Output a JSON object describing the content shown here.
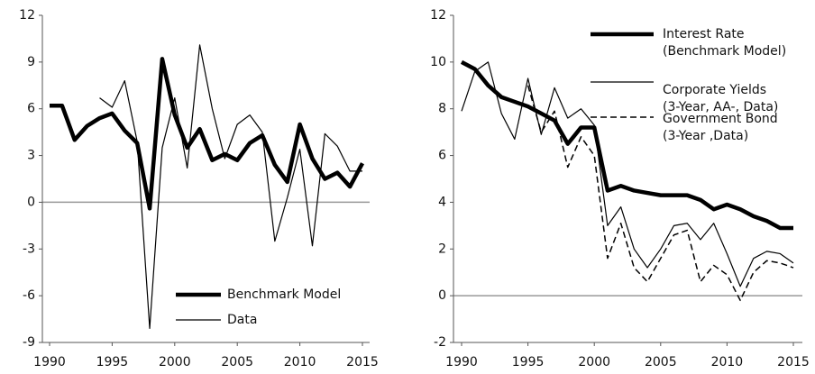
{
  "chart_data": [
    {
      "type": "line",
      "x": [
        1990,
        1991,
        1992,
        1993,
        1994,
        1995,
        1996,
        1997,
        1998,
        1999,
        2000,
        2001,
        2002,
        2003,
        2004,
        2005,
        2006,
        2007,
        2008,
        2009,
        2010,
        2011,
        2012,
        2013,
        2014,
        2015
      ],
      "xlim": [
        1990,
        2015
      ],
      "xticks": [
        1990,
        1995,
        2000,
        2005,
        2010,
        2015
      ],
      "ylim": [
        -9,
        12
      ],
      "yticks": [
        -9,
        -6,
        -3,
        0,
        3,
        6,
        9,
        12
      ],
      "legend": "lower right",
      "series": [
        {
          "name": "Benchmark Model",
          "color": "#000000",
          "linestyle": "thick",
          "values": [
            6.2,
            6.2,
            4.0,
            4.9,
            5.4,
            5.7,
            4.6,
            3.8,
            -0.4,
            9.2,
            5.6,
            3.5,
            4.7,
            2.7,
            3.1,
            2.7,
            3.8,
            4.3,
            2.4,
            1.3,
            5.0,
            2.8,
            1.5,
            1.9,
            1.0,
            2.5
          ]
        },
        {
          "name": "Data",
          "color": "#000000",
          "linestyle": "thin",
          "values": [
            null,
            null,
            null,
            null,
            6.7,
            6.1,
            7.8,
            3.9,
            -8.1,
            3.5,
            6.7,
            2.2,
            10.1,
            6.0,
            2.8,
            5.0,
            5.6,
            4.5,
            -2.5,
            0.3,
            3.4,
            -2.8,
            4.4,
            3.6,
            2.0,
            2.0
          ]
        }
      ]
    },
    {
      "type": "line",
      "x": [
        1990,
        1991,
        1992,
        1993,
        1994,
        1995,
        1996,
        1997,
        1998,
        1999,
        2000,
        2001,
        2002,
        2003,
        2004,
        2005,
        2006,
        2007,
        2008,
        2009,
        2010,
        2011,
        2012,
        2013,
        2014,
        2015
      ],
      "xlim": [
        1990,
        2015
      ],
      "xticks": [
        1990,
        1995,
        2000,
        2005,
        2010,
        2015
      ],
      "ylim": [
        -2,
        12
      ],
      "yticks": [
        -2,
        0,
        2,
        4,
        6,
        8,
        10,
        12
      ],
      "legend": "upper right",
      "series": [
        {
          "name": "Interest Rate\n(Benchmark Model)",
          "color": "#000000",
          "linestyle": "thick",
          "values": [
            10.0,
            9.7,
            9.0,
            8.5,
            8.3,
            8.1,
            7.8,
            7.5,
            6.5,
            7.2,
            7.2,
            4.5,
            4.7,
            4.5,
            4.4,
            4.3,
            4.3,
            4.3,
            4.1,
            3.7,
            3.9,
            3.7,
            3.4,
            3.2,
            2.9,
            2.9
          ]
        },
        {
          "name": "Corporate Yields\n(3-Year, AA-, Data)",
          "color": "#000000",
          "linestyle": "thin",
          "values": [
            7.9,
            9.6,
            10.0,
            7.8,
            6.7,
            9.3,
            6.9,
            8.9,
            7.6,
            8.0,
            7.3,
            3.0,
            3.8,
            2.0,
            1.2,
            2.0,
            3.0,
            3.1,
            2.4,
            3.1,
            1.8,
            0.4,
            1.6,
            1.9,
            1.8,
            1.4
          ]
        },
        {
          "name": "Government Bond\n(3-Year ,Data)",
          "color": "#000000",
          "linestyle": "dashed",
          "values": [
            null,
            null,
            null,
            null,
            null,
            9.0,
            7.0,
            7.9,
            5.5,
            6.8,
            6.0,
            1.6,
            3.1,
            1.2,
            0.6,
            1.6,
            2.6,
            2.8,
            0.6,
            1.3,
            0.9,
            -0.2,
            1.0,
            1.5,
            1.4,
            1.2
          ]
        }
      ]
    }
  ]
}
